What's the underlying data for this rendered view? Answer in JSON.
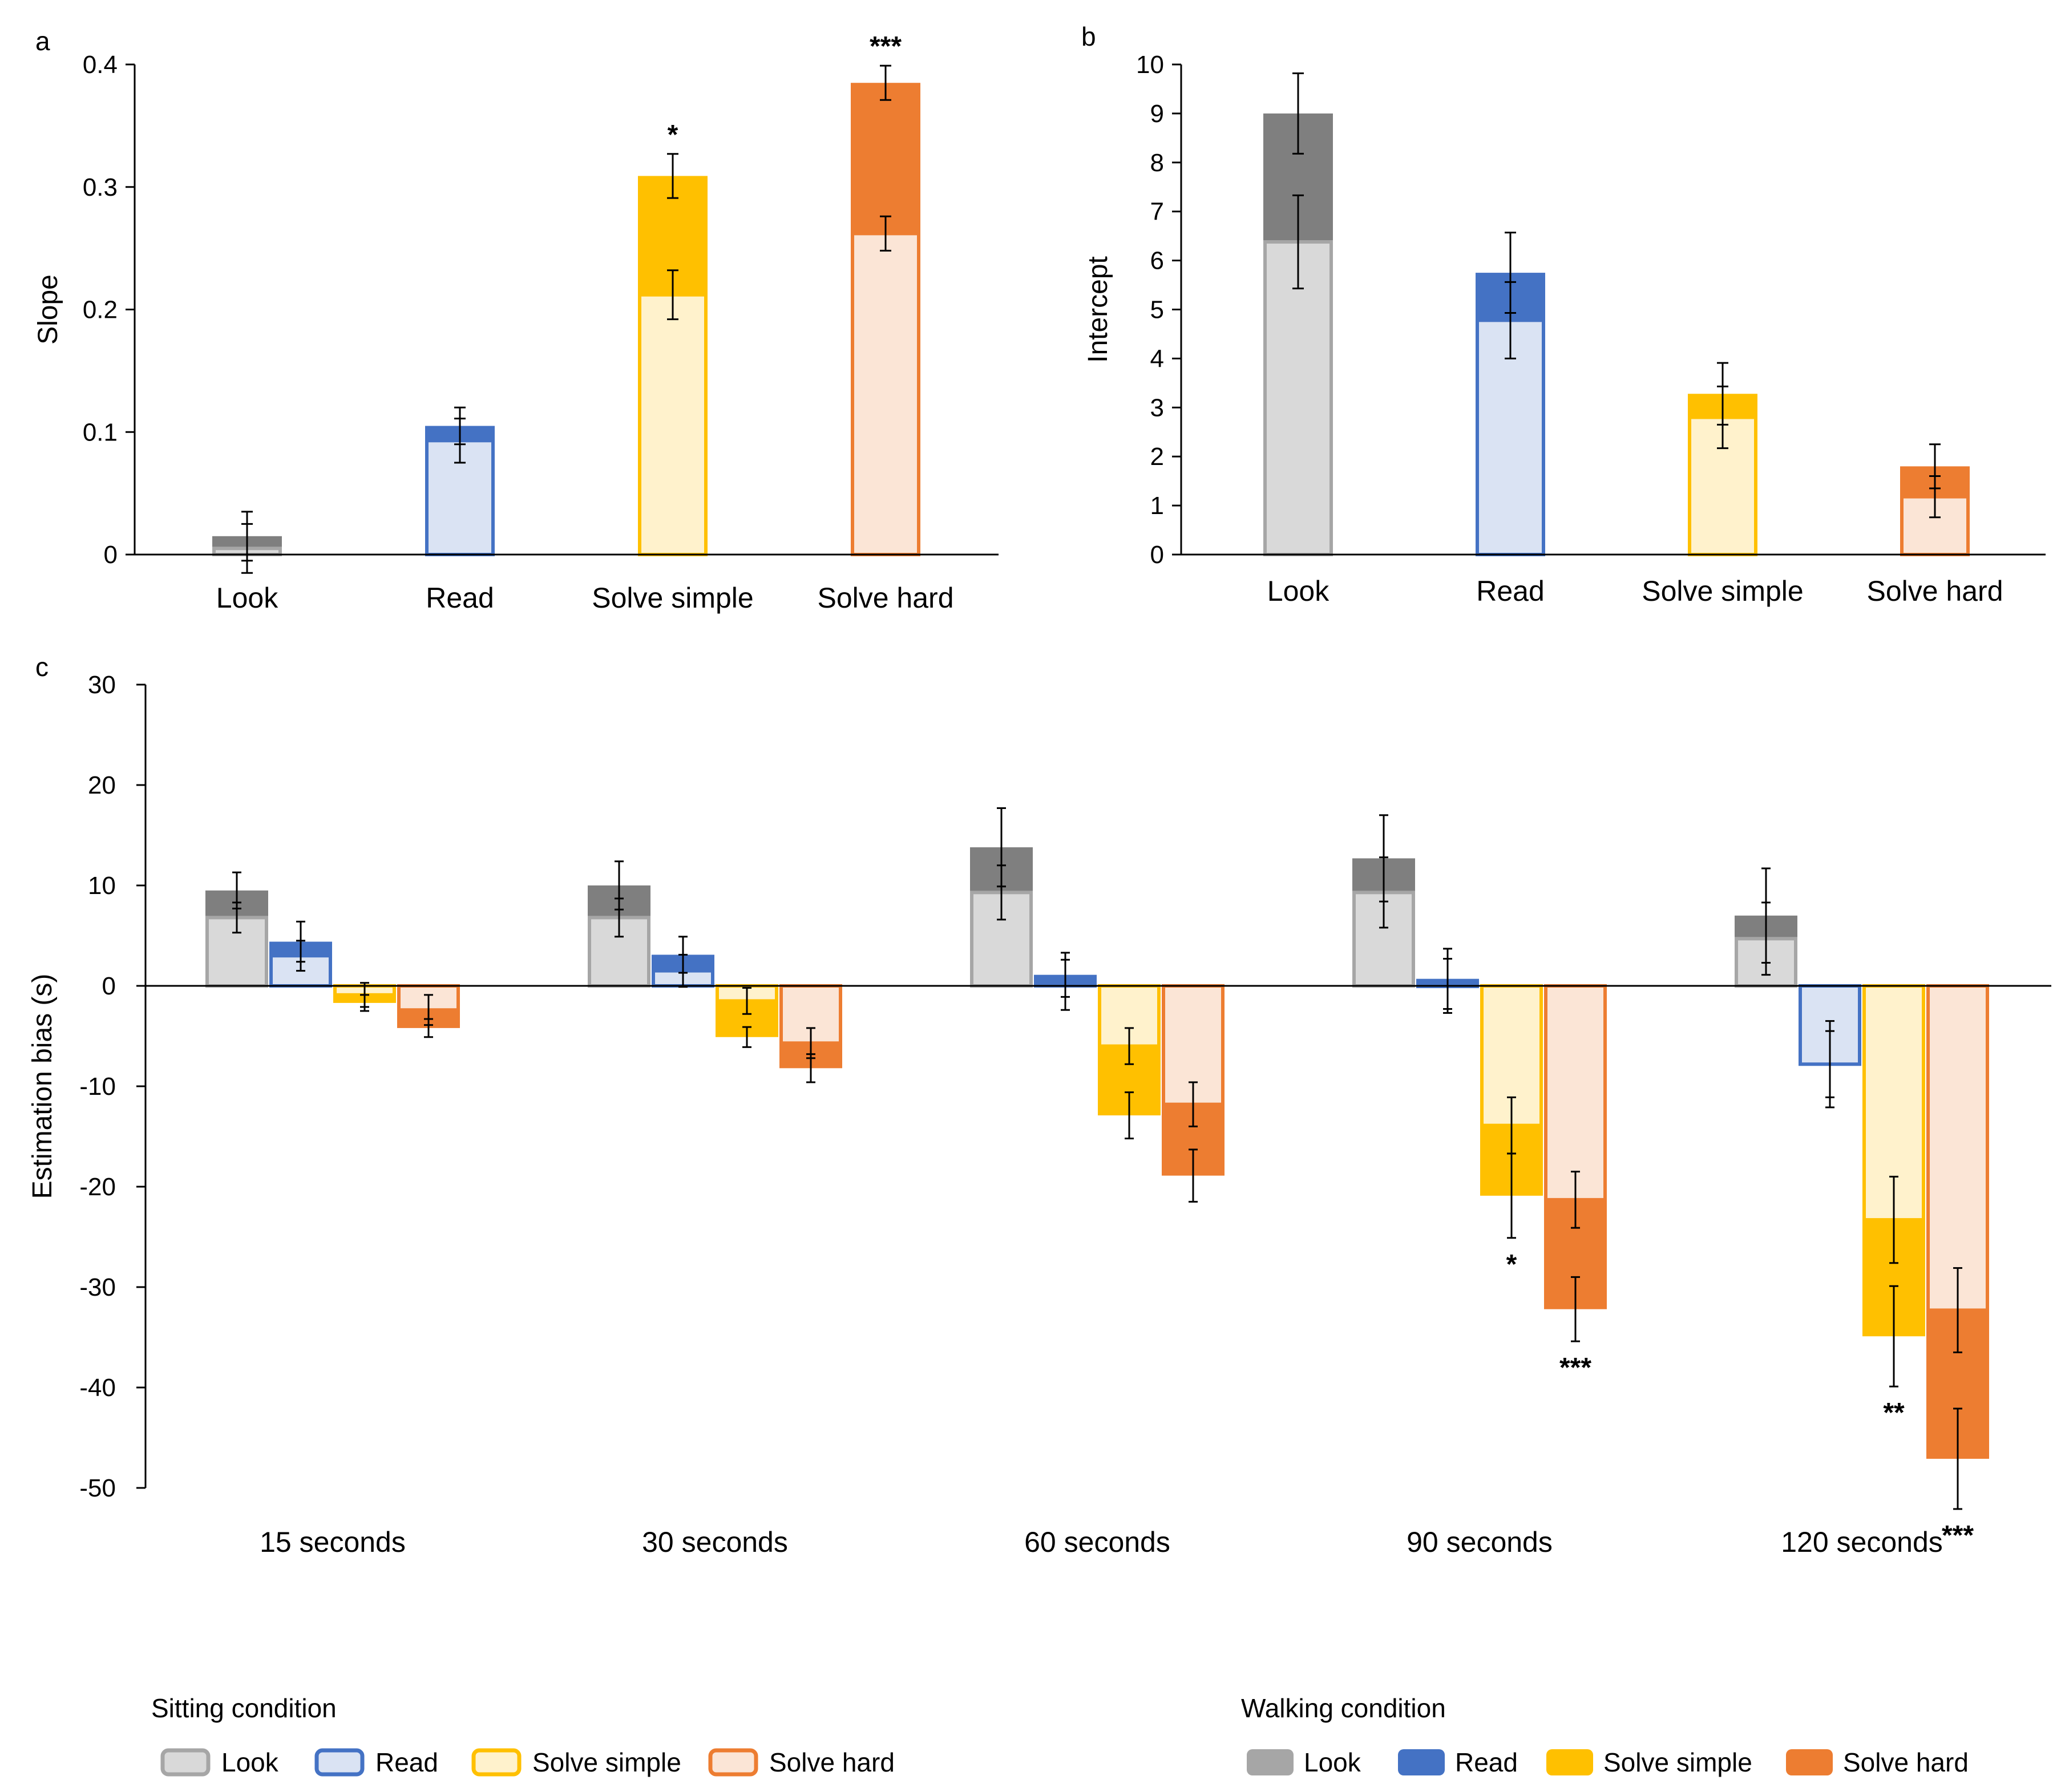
{
  "chart_data": [
    {
      "panel": "a",
      "type": "bar",
      "ylabel": "Slope",
      "ylim": [
        0,
        0.4
      ],
      "yticks": [
        "0",
        "0.1",
        "0.2",
        "0.3",
        "0.4"
      ],
      "categories": [
        "Look",
        "Read",
        "Solve simple",
        "Solve hard"
      ],
      "series": [
        {
          "name": "Sitting",
          "values": [
            0.005,
            0.093,
            0.212,
            0.262
          ],
          "errors": [
            0.02,
            0.018,
            0.02,
            0.014
          ]
        },
        {
          "name": "Walking",
          "values": [
            0.015,
            0.105,
            0.309,
            0.385
          ],
          "errors": [
            0.02,
            0.015,
            0.018,
            0.014
          ]
        }
      ],
      "significance": [
        "",
        "",
        "*",
        "***"
      ]
    },
    {
      "panel": "b",
      "type": "bar",
      "ylabel": "Intercept",
      "ylim": [
        0,
        10
      ],
      "yticks": [
        "0",
        "1",
        "2",
        "3",
        "4",
        "5",
        "6",
        "7",
        "8",
        "9",
        "10"
      ],
      "categories": [
        "Look",
        "Read",
        "Solve simple",
        "Solve hard"
      ],
      "series": [
        {
          "name": "Sitting",
          "values": [
            6.38,
            4.78,
            2.8,
            1.18
          ],
          "errors": [
            0.95,
            0.78,
            0.63,
            0.42
          ]
        },
        {
          "name": "Walking",
          "values": [
            9.0,
            5.75,
            3.28,
            1.8
          ],
          "errors": [
            0.82,
            0.82,
            0.63,
            0.45
          ]
        }
      ],
      "significance": [
        "",
        "",
        "",
        ""
      ]
    },
    {
      "panel": "c",
      "type": "bar",
      "ylabel": "Estimation bias (s)",
      "ylim": [
        -50,
        30
      ],
      "yticks": [
        "30",
        "20",
        "10",
        "0",
        "-10",
        "-20",
        "-30",
        "-40",
        "-50"
      ],
      "categories": [
        "15 seconds",
        "30 seconds",
        "60 seconds",
        "90 seconds",
        "120 seconds"
      ],
      "tasks": [
        "Look",
        "Read",
        "Solve simple",
        "Solve hard"
      ],
      "sitting": [
        [
          6.8,
          3.0,
          -0.9,
          -2.4
        ],
        [
          6.8,
          1.5,
          -1.5,
          -5.7
        ],
        [
          9.3,
          0.1,
          -6.0,
          -11.8
        ],
        [
          9.3,
          0.0,
          -13.9,
          -21.3
        ],
        [
          4.7,
          -7.8,
          -23.3,
          -32.3
        ]
      ],
      "sitting_errors": [
        [
          1.5,
          1.5,
          1.2,
          1.5
        ],
        [
          1.9,
          1.6,
          1.3,
          1.5
        ],
        [
          2.7,
          2.5,
          1.8,
          2.2
        ],
        [
          3.5,
          2.7,
          2.8,
          2.8
        ],
        [
          3.6,
          3.3,
          4.3,
          4.2
        ]
      ],
      "walking": [
        [
          9.5,
          4.4,
          -1.7,
          -4.2
        ],
        [
          10.0,
          3.1,
          -5.1,
          -8.2
        ],
        [
          13.8,
          1.1,
          -12.9,
          -18.9
        ],
        [
          12.7,
          0.7,
          -20.9,
          -32.2
        ],
        [
          7.0,
          -7.8,
          -34.9,
          -47.1
        ]
      ],
      "walking_errors": [
        [
          1.8,
          2.0,
          0.8,
          0.9
        ],
        [
          2.4,
          1.8,
          1.0,
          1.4
        ],
        [
          3.9,
          2.2,
          2.3,
          2.6
        ],
        [
          4.3,
          3.0,
          4.2,
          3.2
        ],
        [
          4.7,
          4.3,
          5.0,
          5.0
        ]
      ],
      "significance": [
        [
          "",
          "",
          "",
          ""
        ],
        [
          "",
          "",
          "",
          ""
        ],
        [
          "",
          "",
          "",
          ""
        ],
        [
          "",
          "",
          "*",
          "***"
        ],
        [
          "",
          "",
          "**",
          "***"
        ]
      ]
    }
  ],
  "colors": {
    "look_walk": "#7f7f7f",
    "look_sit_fill": "#d9d9d9",
    "look_edge": "#a6a6a6",
    "look_legend_walk": "#a6a6a6",
    "read_walk": "#4472c4",
    "read_sit_fill": "#dae3f3",
    "simple_walk": "#ffc000",
    "simple_sit_fill": "#fff2cc",
    "hard_walk": "#ed7d31",
    "hard_sit_fill": "#fbe5d6"
  },
  "legend": {
    "sitting_title": "Sitting condition",
    "walking_title": "Walking condition",
    "items": [
      "Look",
      "Read",
      "Solve simple",
      "Solve hard"
    ]
  },
  "panel_labels": [
    "a",
    "b",
    "c"
  ]
}
